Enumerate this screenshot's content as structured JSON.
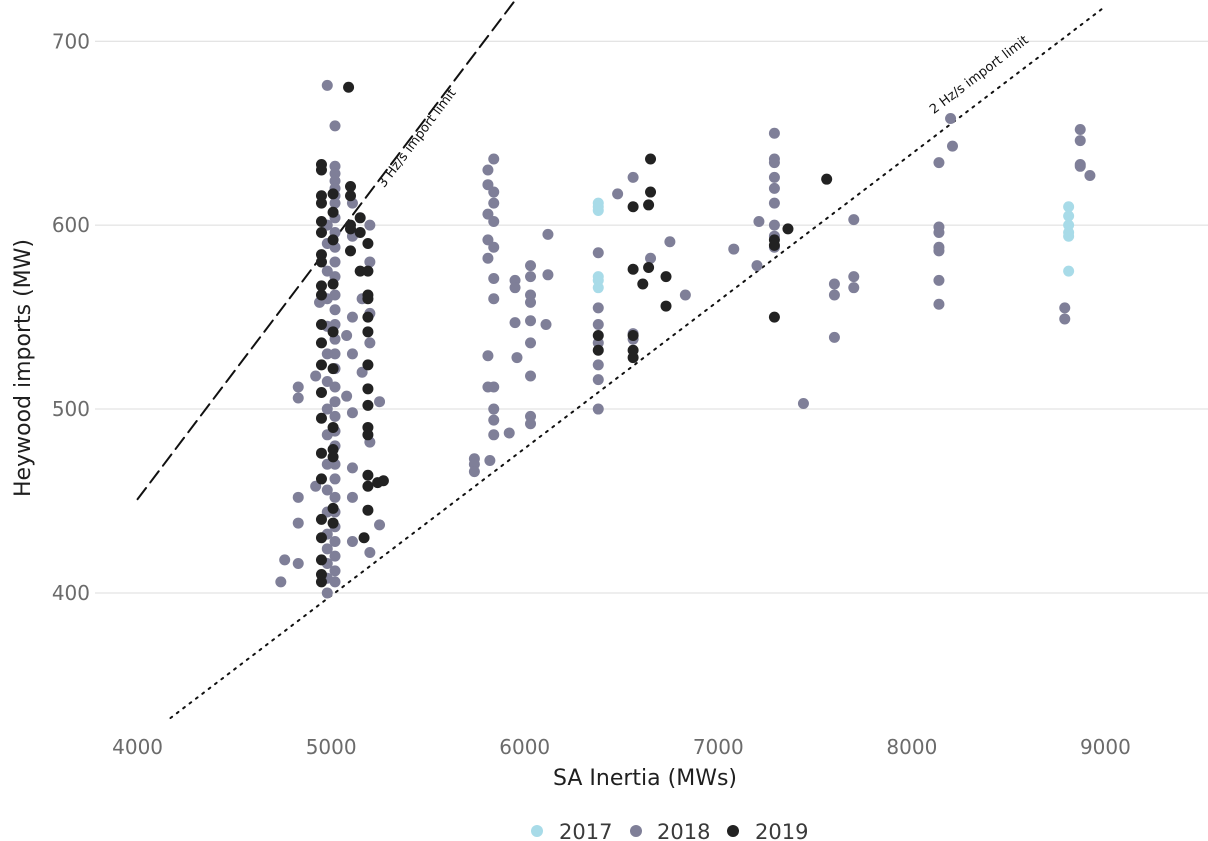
{
  "chart_data": {
    "type": "scatter",
    "title": "",
    "xlabel": "SA Inertia (MWs)",
    "ylabel": "Heywood imports (MW)",
    "xlim": [
      3780,
      9530
    ],
    "ylim": [
      332,
      717
    ],
    "x_ticks": [
      4000,
      5000,
      6000,
      7000,
      8000,
      9000
    ],
    "y_ticks": [
      400,
      500,
      600,
      700
    ],
    "x_tick_labels": [
      "4000",
      "5000",
      "6000",
      "7000",
      "8000",
      "9000"
    ],
    "y_tick_labels": [
      "400",
      "500",
      "600",
      "700"
    ],
    "grid": "horizontal",
    "legend_position": "bottom",
    "legend": [
      "2017",
      "2018",
      "2019"
    ],
    "colors": {
      "2017": "#a8dbe8",
      "2018": "#7f7f98",
      "2019": "#222222"
    },
    "reference_lines": [
      {
        "label": "3 Hz/s import limit",
        "style": "dashed",
        "points": [
          [
            4000,
            451
          ],
          [
            5970,
            725
          ]
        ]
      },
      {
        "label": "2 Hz/s import limit",
        "style": "dotted",
        "points": [
          [
            4170,
            332
          ],
          [
            9000,
            719
          ]
        ]
      }
    ],
    "series": [
      {
        "name": "2017",
        "points": [
          [
            6380,
            612
          ],
          [
            6380,
            610
          ],
          [
            6380,
            608
          ],
          [
            6380,
            572
          ],
          [
            6380,
            570
          ],
          [
            6380,
            566
          ],
          [
            8810,
            610
          ],
          [
            8810,
            605
          ],
          [
            8810,
            600
          ],
          [
            8810,
            596
          ],
          [
            8810,
            594
          ],
          [
            8810,
            575
          ]
        ]
      },
      {
        "name": "2018",
        "points": [
          [
            4980,
            676
          ],
          [
            5020,
            654
          ],
          [
            5020,
            632
          ],
          [
            5020,
            628
          ],
          [
            5020,
            624
          ],
          [
            5020,
            620
          ],
          [
            5020,
            616
          ],
          [
            5020,
            612
          ],
          [
            5020,
            604
          ],
          [
            5020,
            596
          ],
          [
            5020,
            588
          ],
          [
            5020,
            580
          ],
          [
            5020,
            572
          ],
          [
            5020,
            562
          ],
          [
            5020,
            554
          ],
          [
            5020,
            546
          ],
          [
            5020,
            538
          ],
          [
            5020,
            530
          ],
          [
            5020,
            522
          ],
          [
            5020,
            512
          ],
          [
            5020,
            504
          ],
          [
            5020,
            496
          ],
          [
            5020,
            488
          ],
          [
            5020,
            480
          ],
          [
            5020,
            470
          ],
          [
            5020,
            462
          ],
          [
            5020,
            452
          ],
          [
            5020,
            444
          ],
          [
            5020,
            436
          ],
          [
            5020,
            428
          ],
          [
            5020,
            420
          ],
          [
            5020,
            412
          ],
          [
            5020,
            406
          ],
          [
            4980,
            600
          ],
          [
            4980,
            590
          ],
          [
            4980,
            575
          ],
          [
            4980,
            560
          ],
          [
            4980,
            545
          ],
          [
            4980,
            530
          ],
          [
            4980,
            515
          ],
          [
            4980,
            500
          ],
          [
            4980,
            486
          ],
          [
            4980,
            470
          ],
          [
            4980,
            456
          ],
          [
            4980,
            444
          ],
          [
            4980,
            432
          ],
          [
            4980,
            424
          ],
          [
            4980,
            416
          ],
          [
            4980,
            408
          ],
          [
            4980,
            400
          ],
          [
            4760,
            418
          ],
          [
            4740,
            406
          ],
          [
            4830,
            512
          ],
          [
            4830,
            506
          ],
          [
            4830,
            452
          ],
          [
            4830,
            438
          ],
          [
            4830,
            416
          ],
          [
            4920,
            518
          ],
          [
            4920,
            458
          ],
          [
            4940,
            558
          ],
          [
            5110,
            612
          ],
          [
            5110,
            594
          ],
          [
            5110,
            550
          ],
          [
            5110,
            530
          ],
          [
            5110,
            498
          ],
          [
            5110,
            468
          ],
          [
            5110,
            452
          ],
          [
            5110,
            428
          ],
          [
            5160,
            560
          ],
          [
            5160,
            520
          ],
          [
            5200,
            600
          ],
          [
            5200,
            580
          ],
          [
            5200,
            552
          ],
          [
            5200,
            536
          ],
          [
            5200,
            482
          ],
          [
            5200,
            422
          ],
          [
            5250,
            504
          ],
          [
            5250,
            437
          ],
          [
            5080,
            540
          ],
          [
            5080,
            507
          ],
          [
            5810,
            630
          ],
          [
            5810,
            622
          ],
          [
            5810,
            606
          ],
          [
            5810,
            592
          ],
          [
            5810,
            582
          ],
          [
            5810,
            529
          ],
          [
            5810,
            512
          ],
          [
            5840,
            636
          ],
          [
            5840,
            618
          ],
          [
            5840,
            612
          ],
          [
            5840,
            602
          ],
          [
            5840,
            588
          ],
          [
            5840,
            571
          ],
          [
            5840,
            560
          ],
          [
            5840,
            512
          ],
          [
            5840,
            500
          ],
          [
            5840,
            494
          ],
          [
            5840,
            486
          ],
          [
            5740,
            473
          ],
          [
            5740,
            470
          ],
          [
            5740,
            466
          ],
          [
            5820,
            472
          ],
          [
            5920,
            487
          ],
          [
            5950,
            570
          ],
          [
            5950,
            566
          ],
          [
            5950,
            547
          ],
          [
            5960,
            528
          ],
          [
            6030,
            578
          ],
          [
            6030,
            572
          ],
          [
            6030,
            562
          ],
          [
            6030,
            558
          ],
          [
            6030,
            548
          ],
          [
            6030,
            536
          ],
          [
            6030,
            518
          ],
          [
            6030,
            496
          ],
          [
            6030,
            492
          ],
          [
            6120,
            595
          ],
          [
            6120,
            573
          ],
          [
            6110,
            546
          ],
          [
            6380,
            585
          ],
          [
            6380,
            555
          ],
          [
            6380,
            546
          ],
          [
            6380,
            536
          ],
          [
            6380,
            524
          ],
          [
            6380,
            516
          ],
          [
            6380,
            500
          ],
          [
            6480,
            617
          ],
          [
            6560,
            626
          ],
          [
            6560,
            541
          ],
          [
            6560,
            538
          ],
          [
            6650,
            582
          ],
          [
            6750,
            591
          ],
          [
            6830,
            562
          ],
          [
            7080,
            587
          ],
          [
            7210,
            602
          ],
          [
            7200,
            578
          ],
          [
            7290,
            650
          ],
          [
            7290,
            636
          ],
          [
            7290,
            634
          ],
          [
            7290,
            626
          ],
          [
            7290,
            620
          ],
          [
            7290,
            612
          ],
          [
            7290,
            600
          ],
          [
            7290,
            594
          ],
          [
            7290,
            588
          ],
          [
            7440,
            503
          ],
          [
            7600,
            568
          ],
          [
            7600,
            562
          ],
          [
            7600,
            539
          ],
          [
            7700,
            603
          ],
          [
            7700,
            572
          ],
          [
            7700,
            566
          ],
          [
            8140,
            634
          ],
          [
            8140,
            599
          ],
          [
            8140,
            596
          ],
          [
            8140,
            588
          ],
          [
            8140,
            586
          ],
          [
            8140,
            570
          ],
          [
            8140,
            557
          ],
          [
            8200,
            658
          ],
          [
            8210,
            643
          ],
          [
            8870,
            652
          ],
          [
            8870,
            646
          ],
          [
            8870,
            633
          ],
          [
            8870,
            632
          ],
          [
            8920,
            627
          ],
          [
            8790,
            555
          ],
          [
            8790,
            549
          ]
        ]
      },
      {
        "name": "2019",
        "points": [
          [
            5090,
            675
          ],
          [
            4950,
            633
          ],
          [
            4950,
            630
          ],
          [
            4950,
            616
          ],
          [
            4950,
            612
          ],
          [
            4950,
            602
          ],
          [
            4950,
            596
          ],
          [
            4950,
            584
          ],
          [
            4950,
            580
          ],
          [
            4950,
            567
          ],
          [
            4950,
            562
          ],
          [
            4950,
            546
          ],
          [
            4950,
            536
          ],
          [
            4950,
            524
          ],
          [
            4950,
            509
          ],
          [
            4950,
            495
          ],
          [
            4950,
            476
          ],
          [
            4950,
            462
          ],
          [
            4950,
            440
          ],
          [
            4950,
            430
          ],
          [
            4950,
            418
          ],
          [
            4950,
            410
          ],
          [
            4950,
            406
          ],
          [
            5010,
            617
          ],
          [
            5010,
            607
          ],
          [
            5010,
            592
          ],
          [
            5010,
            568
          ],
          [
            5010,
            542
          ],
          [
            5010,
            522
          ],
          [
            5010,
            490
          ],
          [
            5010,
            478
          ],
          [
            5010,
            474
          ],
          [
            5010,
            446
          ],
          [
            5010,
            438
          ],
          [
            5100,
            621
          ],
          [
            5100,
            616
          ],
          [
            5100,
            600
          ],
          [
            5100,
            598
          ],
          [
            5100,
            586
          ],
          [
            5150,
            604
          ],
          [
            5150,
            596
          ],
          [
            5150,
            575
          ],
          [
            5190,
            590
          ],
          [
            5190,
            575
          ],
          [
            5190,
            562
          ],
          [
            5190,
            560
          ],
          [
            5190,
            550
          ],
          [
            5190,
            542
          ],
          [
            5190,
            524
          ],
          [
            5190,
            511
          ],
          [
            5190,
            502
          ],
          [
            5190,
            490
          ],
          [
            5190,
            486
          ],
          [
            5190,
            464
          ],
          [
            5190,
            458
          ],
          [
            5190,
            445
          ],
          [
            5170,
            430
          ],
          [
            5270,
            461
          ],
          [
            5240,
            460
          ],
          [
            6380,
            540
          ],
          [
            6380,
            532
          ],
          [
            6560,
            610
          ],
          [
            6560,
            576
          ],
          [
            6560,
            540
          ],
          [
            6560,
            532
          ],
          [
            6560,
            528
          ],
          [
            6650,
            636
          ],
          [
            6650,
            618
          ],
          [
            6640,
            611
          ],
          [
            6640,
            577
          ],
          [
            6610,
            568
          ],
          [
            6730,
            572
          ],
          [
            6730,
            556
          ],
          [
            7290,
            592
          ],
          [
            7290,
            589
          ],
          [
            7290,
            550
          ],
          [
            7360,
            598
          ],
          [
            7560,
            625
          ]
        ]
      }
    ]
  }
}
